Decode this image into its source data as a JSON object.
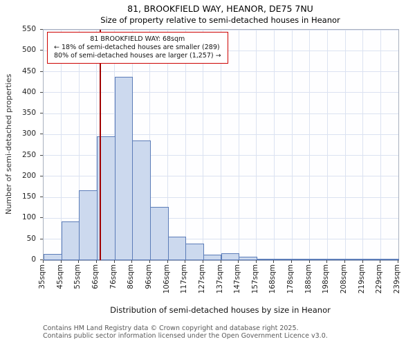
{
  "title": "81, BROOKFIELD WAY, HEANOR, DE75 7NU",
  "subtitle": "Size of property relative to semi-detached houses in Heanor",
  "annotation": {
    "line1": "81 BROOKFIELD WAY: 68sqm",
    "line2": "← 18% of semi-detached houses are smaller (289)",
    "line3": "80% of semi-detached houses are larger (1,257) →"
  },
  "footer": {
    "line1": "Contains HM Land Registry data © Crown copyright and database right 2025.",
    "line2": "Contains public sector information licensed under the Open Government Licence v3.0."
  },
  "chart_data": {
    "type": "bar",
    "title": "81, BROOKFIELD WAY, HEANOR, DE75 7NU",
    "subtitle": "Size of property relative to semi-detached houses in Heanor",
    "xlabel": "Distribution of semi-detached houses by size in Heanor",
    "ylabel": "Number of semi-detached properties",
    "bin_edge_labels": [
      "35sqm",
      "45sqm",
      "55sqm",
      "66sqm",
      "76sqm",
      "86sqm",
      "96sqm",
      "106sqm",
      "117sqm",
      "127sqm",
      "137sqm",
      "147sqm",
      "157sqm",
      "168sqm",
      "178sqm",
      "188sqm",
      "198sqm",
      "208sqm",
      "219sqm",
      "229sqm",
      "239sqm"
    ],
    "values": [
      15,
      92,
      167,
      296,
      437,
      286,
      127,
      57,
      39,
      14,
      17,
      8,
      4,
      2,
      1,
      1,
      1,
      1,
      1,
      2
    ],
    "ylim": [
      0,
      550
    ],
    "ytick_step": 50,
    "grid": true,
    "marker": {
      "value": 68,
      "unit": "sqm",
      "label": "81 BROOKFIELD WAY: 68sqm"
    },
    "colors": {
      "bar_fill": "#ccd9ee",
      "bar_stroke": "#5b7cb8",
      "grid": "#dbe2f1",
      "marker_line": "#a00000",
      "annotation_border": "#cc0000"
    }
  }
}
